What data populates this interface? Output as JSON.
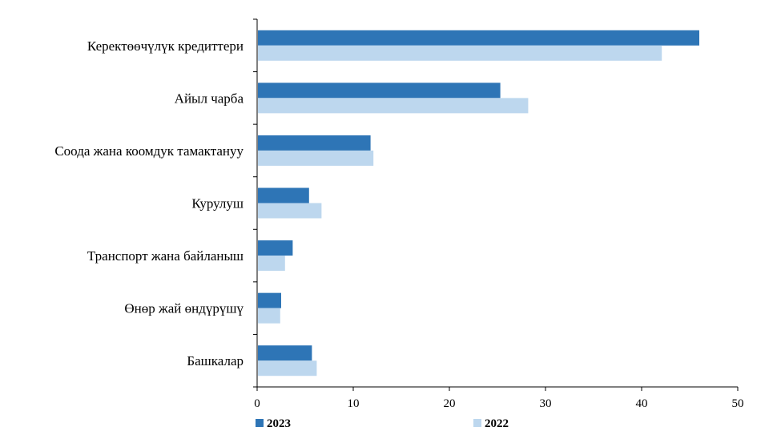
{
  "chart_data": {
    "type": "bar",
    "orientation": "horizontal",
    "categories": [
      "Керектөөчүлүк кредиттери",
      "Айыл чарба",
      "Соода жана коомдук тамактануу",
      "Курулуш",
      "Транспорт жана байланыш",
      "Өнөр жай өндүрүшү",
      "Башкалар"
    ],
    "series": [
      {
        "name": "2023",
        "color": "#2E75B6",
        "values": [
          46.0,
          25.3,
          11.8,
          5.4,
          3.7,
          2.5,
          5.7
        ]
      },
      {
        "name": "2022",
        "color": "#BDD7EE",
        "values": [
          42.1,
          28.2,
          12.1,
          6.7,
          2.9,
          2.4,
          6.2
        ]
      }
    ],
    "xlim": [
      0,
      50
    ],
    "xticks": [
      "0",
      "10",
      "20",
      "30",
      "40",
      "50"
    ],
    "grid": false,
    "legend": "bottom",
    "title": "",
    "xlabel": "",
    "ylabel": ""
  }
}
